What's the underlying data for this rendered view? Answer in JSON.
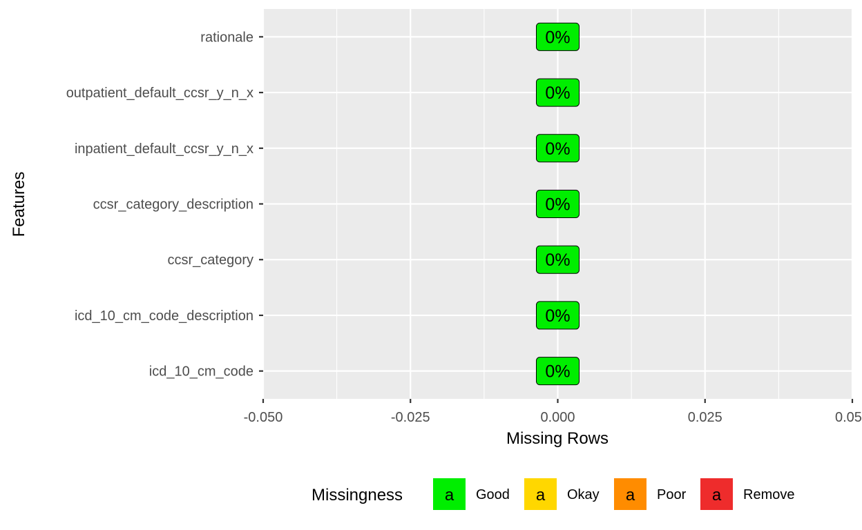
{
  "chart_data": {
    "type": "bar",
    "orientation": "horizontal",
    "categories": [
      "rationale",
      "outpatient_default_ccsr_y_n_x",
      "inpatient_default_ccsr_y_n_x",
      "ccsr_category_description",
      "ccsr_category",
      "icd_10_cm_code_description",
      "icd_10_cm_code"
    ],
    "values": [
      0,
      0,
      0,
      0,
      0,
      0,
      0
    ],
    "labels": [
      "0%",
      "0%",
      "0%",
      "0%",
      "0%",
      "0%",
      "0%"
    ],
    "label_color": "#00EE00",
    "xlabel": "Missing Rows",
    "ylabel": "Features",
    "xlim": [
      -0.05,
      0.05
    ],
    "xticks": [
      -0.05,
      -0.025,
      0.0,
      0.025,
      0.05
    ],
    "xtick_labels": [
      "-0.050",
      "-0.025",
      "0.000",
      "0.025",
      "0.050"
    ],
    "grid": true,
    "panel_background": "#EBEBEB",
    "legend": {
      "title": "Missingness",
      "position": "bottom",
      "key_glyph": "a",
      "items": [
        {
          "label": "Good",
          "color": "#00EE00"
        },
        {
          "label": "Okay",
          "color": "#FFD700"
        },
        {
          "label": "Poor",
          "color": "#FF8C00"
        },
        {
          "label": "Remove",
          "color": "#EE2C2C"
        }
      ]
    }
  }
}
